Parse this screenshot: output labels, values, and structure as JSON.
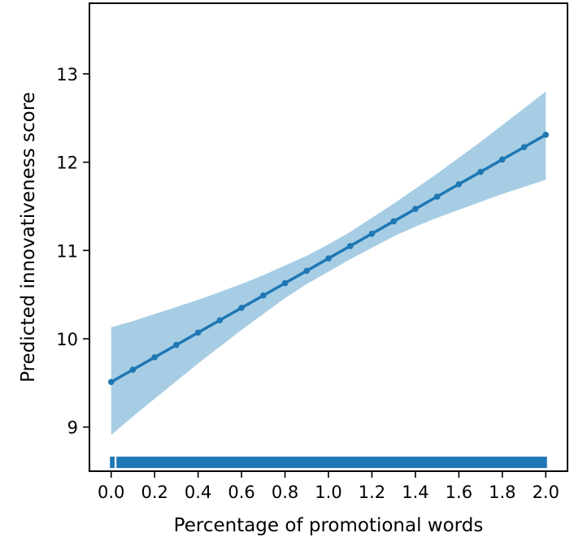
{
  "chart_data": {
    "type": "line",
    "xlabel": "Percentage of promotional words",
    "ylabel": "Predicted innovativeness score",
    "xlim": [
      -0.1,
      2.1
    ],
    "ylim": [
      8.5,
      13.8
    ],
    "xticks": [
      0.0,
      0.2,
      0.4,
      0.6,
      0.8,
      1.0,
      1.2,
      1.4,
      1.6,
      1.8,
      2.0
    ],
    "xtick_labels": [
      "0.0",
      "0.2",
      "0.4",
      "0.6",
      "0.8",
      "1.0",
      "1.2",
      "1.4",
      "1.6",
      "1.8",
      "2.0"
    ],
    "yticks": [
      9,
      10,
      11,
      12,
      13
    ],
    "ytick_labels": [
      "9",
      "10",
      "11",
      "12",
      "13"
    ],
    "grid": false,
    "series": [
      {
        "x": [
          0.0,
          0.1,
          0.2,
          0.3,
          0.4,
          0.5,
          0.6,
          0.7,
          0.8,
          0.9,
          1.0,
          1.1,
          1.2,
          1.3,
          1.4,
          1.5,
          1.6,
          1.7,
          1.8,
          1.9,
          2.0
        ],
        "y": [
          9.51,
          9.65,
          9.79,
          9.93,
          10.07,
          10.21,
          10.35,
          10.49,
          10.63,
          10.77,
          10.91,
          11.05,
          11.19,
          11.33,
          11.47,
          11.61,
          11.75,
          11.89,
          12.03,
          12.17,
          12.31
        ],
        "ci_lower": [
          8.91,
          9.12,
          9.32,
          9.52,
          9.72,
          9.91,
          10.1,
          10.28,
          10.46,
          10.62,
          10.76,
          10.9,
          11.03,
          11.16,
          11.27,
          11.37,
          11.46,
          11.55,
          11.64,
          11.72,
          11.8
        ],
        "ci_upper": [
          10.13,
          10.2,
          10.28,
          10.36,
          10.44,
          10.53,
          10.62,
          10.72,
          10.83,
          10.94,
          11.07,
          11.21,
          11.37,
          11.53,
          11.7,
          11.87,
          12.05,
          12.23,
          12.42,
          12.61,
          12.8
        ],
        "color": "#1f77b4",
        "ci_color": "#a6cde4"
      }
    ],
    "rug": {
      "y": 8.6,
      "segments": [
        [
          0.0,
          0.01
        ],
        [
          0.03,
          2.0
        ]
      ],
      "color": "#1f77b4"
    }
  }
}
